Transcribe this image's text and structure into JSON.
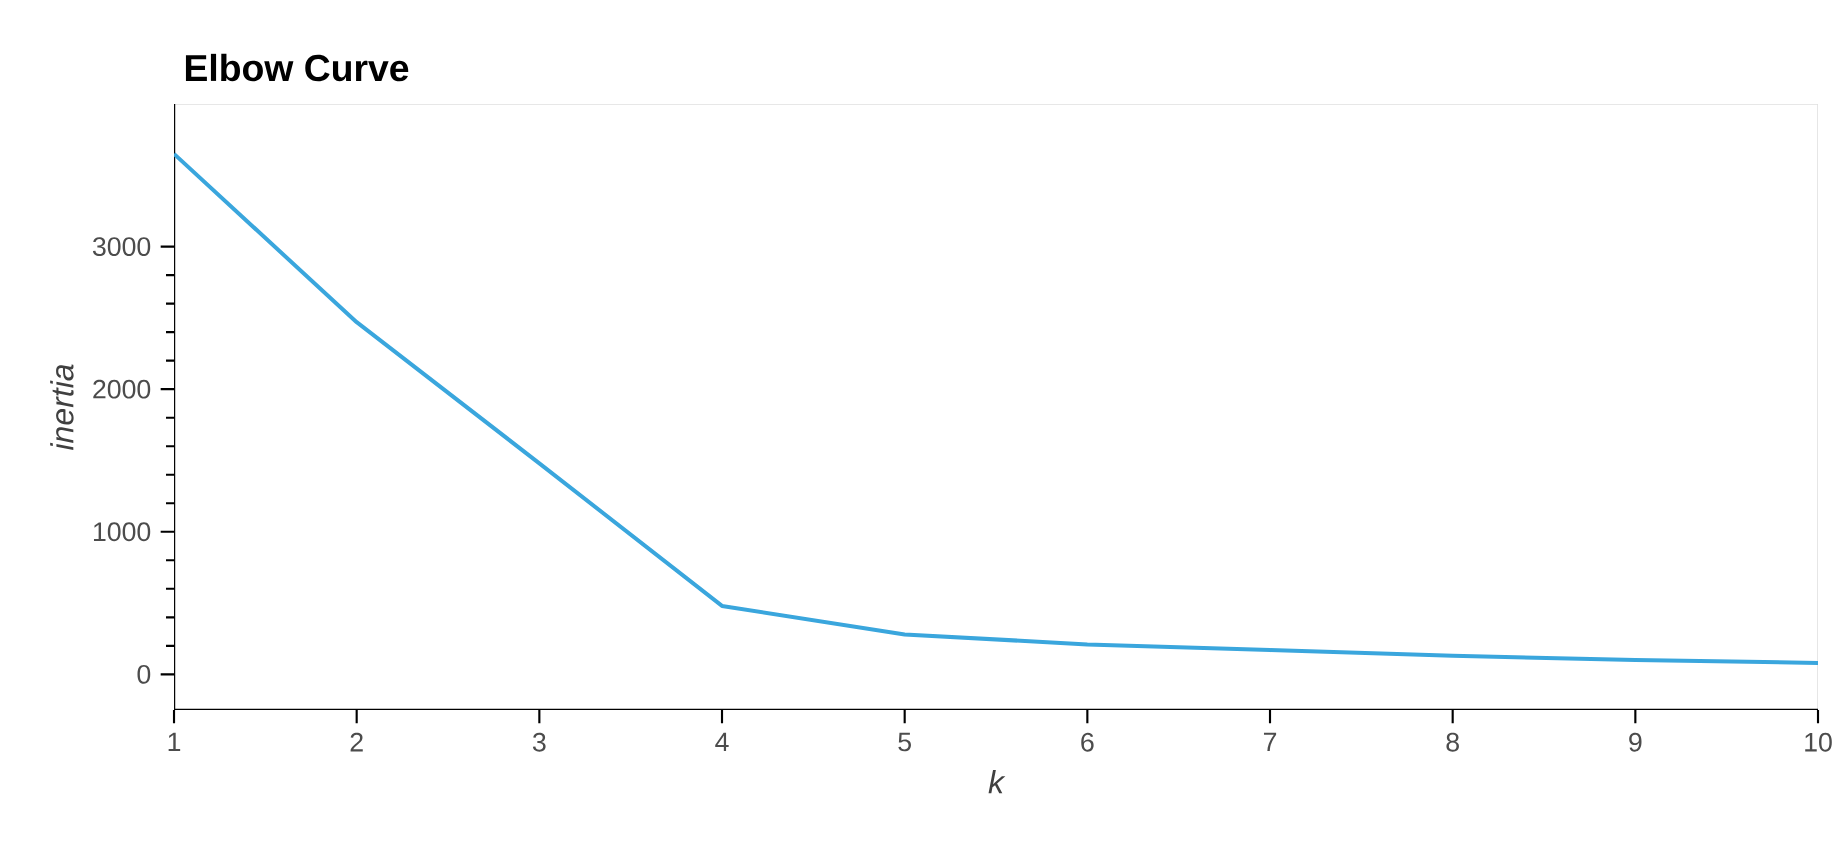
{
  "chart_data": {
    "type": "line",
    "title": "Elbow Curve",
    "xlabel": "k",
    "ylabel": "inertia",
    "x": [
      1,
      2,
      3,
      4,
      5,
      6,
      7,
      8,
      9,
      10
    ],
    "series": [
      {
        "color": "#3aa6dd",
        "values": [
          3650,
          2470,
          1480,
          480,
          280,
          210,
          170,
          130,
          100,
          80
        ]
      }
    ],
    "xlim": [
      1,
      10
    ],
    "ylim": [
      -250,
      4000
    ],
    "xticks": [
      1,
      2,
      3,
      4,
      5,
      6,
      7,
      8,
      9,
      10
    ],
    "yticks": [
      0,
      1000,
      2000,
      3000
    ],
    "grid": false,
    "marker": "none",
    "line_style": "solid"
  }
}
